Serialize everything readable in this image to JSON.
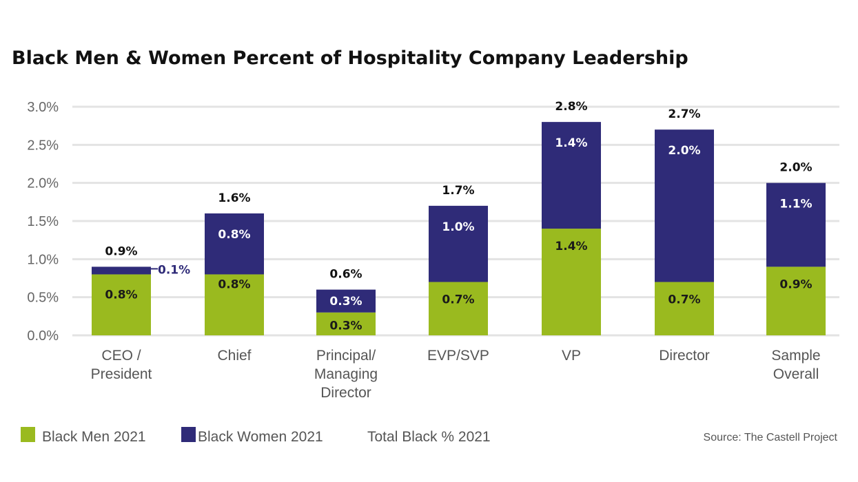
{
  "chart_data": {
    "type": "bar",
    "stacked": true,
    "title": "Black Men & Women Percent of Hospitality Company Leadership",
    "categories": [
      [
        "CEO /",
        "President"
      ],
      [
        "Chief"
      ],
      [
        "Principal/",
        "Managing",
        "Director"
      ],
      [
        "EVP/SVP"
      ],
      [
        "VP"
      ],
      [
        "Director"
      ],
      [
        "Sample",
        "Overall"
      ]
    ],
    "series": [
      {
        "name": "Black Men 2021",
        "color": "#9aba1f",
        "values": [
          0.8,
          0.8,
          0.3,
          0.7,
          1.4,
          0.7,
          0.9
        ],
        "labels": [
          "0.8%",
          "0.8%",
          "0.3%",
          "0.7%",
          "1.4%",
          "0.7%",
          "0.9%"
        ]
      },
      {
        "name": "Black Women 2021",
        "color": "#2f2b78",
        "values": [
          0.1,
          0.8,
          0.3,
          1.0,
          1.4,
          2.0,
          1.1
        ],
        "labels": [
          "0.1%",
          "0.8%",
          "0.3%",
          "1.0%",
          "1.4%",
          "2.0%",
          "1.1%"
        ]
      }
    ],
    "totals": {
      "name": "Total Black % 2021",
      "values": [
        0.9,
        1.6,
        0.6,
        1.7,
        2.8,
        2.7,
        2.0
      ],
      "labels": [
        "0.9%",
        "1.6%",
        "0.6%",
        "1.7%",
        "2.8%",
        "2.7%",
        "2.0%"
      ]
    },
    "ylim": [
      0,
      3.0
    ],
    "yticks": [
      "0.0%",
      "0.5%",
      "1.0%",
      "1.5%",
      "2.0%",
      "2.5%",
      "3.0%"
    ],
    "grid": true,
    "legend": "bottom-left",
    "xlabel": "",
    "ylabel": ""
  },
  "source": "Source:  The Castell Project"
}
